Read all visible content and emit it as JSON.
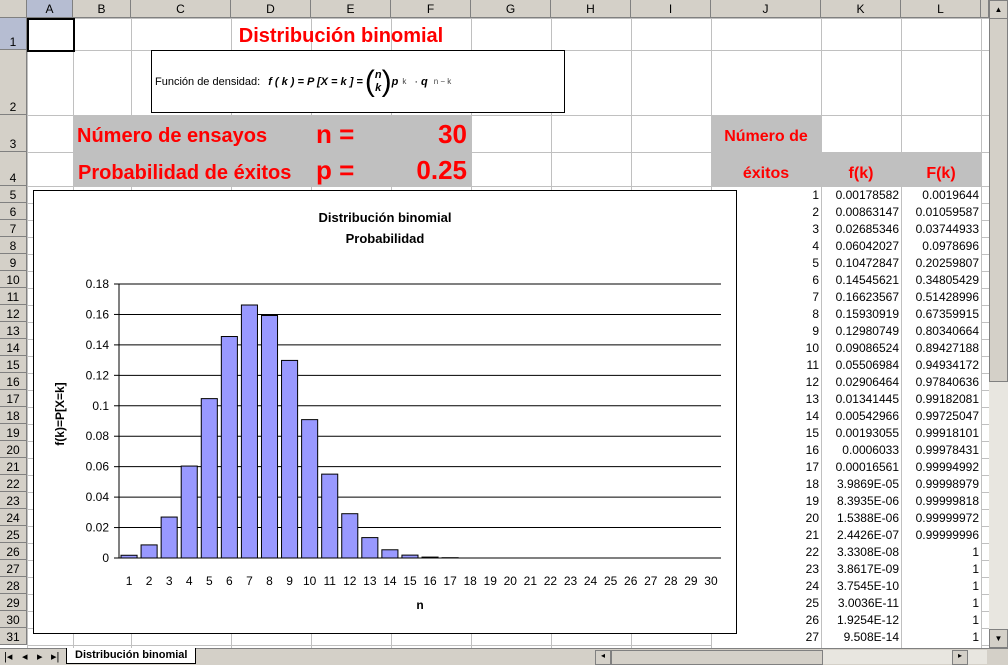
{
  "columns": [
    "A",
    "B",
    "C",
    "D",
    "E",
    "F",
    "G",
    "H",
    "I",
    "J",
    "K",
    "L"
  ],
  "rows_visible": [
    1,
    2,
    3,
    4,
    5,
    6,
    7,
    8,
    9,
    10,
    11,
    12,
    13,
    14,
    15,
    16,
    17,
    18,
    19,
    20,
    21,
    22,
    23,
    24,
    25,
    26,
    27,
    28,
    29,
    30,
    31
  ],
  "selected_cell": "A1",
  "sheet": {
    "title": "Distribución binomial",
    "formula_label": "Función de densidad:",
    "formula": {
      "lhs": "f ( k )  =  P [X  =  k ] =",
      "binom_top": "n",
      "binom_bottom": "k",
      "p": "p",
      "p_exp": "k",
      "dot": "·",
      "q": "q",
      "q_exp": "n − k"
    },
    "n_label": "Número de ensayos",
    "n_symbol": "n =",
    "n_value": "30",
    "p_label": "Probabilidad de éxitos",
    "p_symbol": "p =",
    "p_value": "0.25",
    "table_header": {
      "k_line1": "Número de",
      "k_line2": "éxitos",
      "f": "f(k)",
      "F": "F(k)"
    },
    "table": [
      [
        "1",
        "0.00178582",
        "0.0019644"
      ],
      [
        "2",
        "0.00863147",
        "0.01059587"
      ],
      [
        "3",
        "0.02685346",
        "0.03744933"
      ],
      [
        "4",
        "0.06042027",
        "0.0978696"
      ],
      [
        "5",
        "0.10472847",
        "0.20259807"
      ],
      [
        "6",
        "0.14545621",
        "0.34805429"
      ],
      [
        "7",
        "0.16623567",
        "0.51428996"
      ],
      [
        "8",
        "0.15930919",
        "0.67359915"
      ],
      [
        "9",
        "0.12980749",
        "0.80340664"
      ],
      [
        "10",
        "0.09086524",
        "0.89427188"
      ],
      [
        "11",
        "0.05506984",
        "0.94934172"
      ],
      [
        "12",
        "0.02906464",
        "0.97840636"
      ],
      [
        "13",
        "0.01341445",
        "0.99182081"
      ],
      [
        "14",
        "0.00542966",
        "0.99725047"
      ],
      [
        "15",
        "0.00193055",
        "0.99918101"
      ],
      [
        "16",
        "0.0006033",
        "0.99978431"
      ],
      [
        "17",
        "0.00016561",
        "0.99994992"
      ],
      [
        "18",
        "3.9869E-05",
        "0.99998979"
      ],
      [
        "19",
        "8.3935E-06",
        "0.99999818"
      ],
      [
        "20",
        "1.5388E-06",
        "0.99999972"
      ],
      [
        "21",
        "2.4426E-07",
        "0.99999996"
      ],
      [
        "22",
        "3.3308E-08",
        "1"
      ],
      [
        "23",
        "3.8617E-09",
        "1"
      ],
      [
        "24",
        "3.7545E-10",
        "1"
      ],
      [
        "25",
        "3.0036E-11",
        "1"
      ],
      [
        "26",
        "1.9254E-12",
        "1"
      ],
      [
        "27",
        "9.508E-14",
        "1"
      ]
    ]
  },
  "sheet_tabs": [
    "Distribución binomial"
  ],
  "colors": {
    "title_red": "#ff0000",
    "bar_fill": "#9999ff",
    "header_gray": "#d4d0c8",
    "band_gray": "#c0c0c0"
  },
  "chart_data": {
    "type": "bar",
    "title": "Distribución binomial",
    "subtitle": "Probabilidad",
    "xlabel": "n",
    "ylabel": "f(k)=P[X=k]",
    "ylim": [
      0,
      0.18
    ],
    "yticks": [
      "0",
      "0.02",
      "0.04",
      "0.06",
      "0.08",
      "0.1",
      "0.12",
      "0.14",
      "0.16",
      "0.18"
    ],
    "grid": true,
    "categories": [
      "1",
      "2",
      "3",
      "4",
      "5",
      "6",
      "7",
      "8",
      "9",
      "10",
      "11",
      "12",
      "13",
      "14",
      "15",
      "16",
      "17",
      "18",
      "19",
      "20",
      "21",
      "22",
      "23",
      "24",
      "25",
      "26",
      "27",
      "28",
      "29",
      "30"
    ],
    "values": [
      0.0018,
      0.0086,
      0.0269,
      0.0604,
      0.1047,
      0.1455,
      0.1662,
      0.1593,
      0.1298,
      0.0909,
      0.0551,
      0.0291,
      0.0134,
      0.0054,
      0.0019,
      0.0006,
      0.0002,
      0,
      0,
      0,
      0,
      0,
      0,
      0,
      0,
      0,
      0,
      0,
      0,
      0
    ]
  }
}
